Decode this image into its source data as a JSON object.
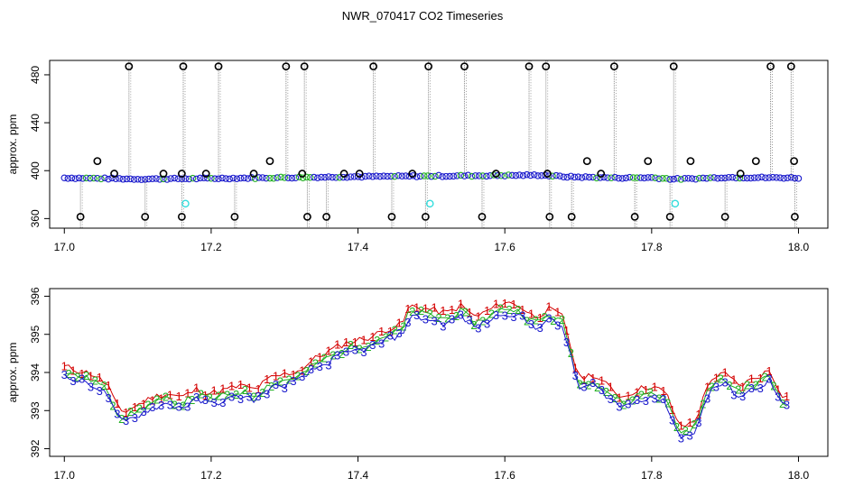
{
  "title": "NWR_070417  CO2 Timeseries",
  "colors": {
    "line1": "#d40000",
    "line2": "#22b022",
    "line3": "#1a1acc",
    "raw": "#888888",
    "outlier": "#000000",
    "flag": "#33dddd"
  },
  "chart_data": [
    {
      "type": "scatter",
      "ylabel": "approx. ppm",
      "xlim": [
        16.98,
        18.04
      ],
      "ylim": [
        352,
        492
      ],
      "xticks": [
        17.0,
        17.2,
        17.4,
        17.6,
        17.8,
        18.0
      ],
      "xtick_labels": [
        "17.0",
        "17.2",
        "17.4",
        "17.6",
        "17.8",
        "18.0"
      ],
      "yticks": [
        360,
        400,
        440,
        480
      ],
      "ytick_labels": [
        "360",
        "400",
        "440",
        "480"
      ],
      "baseline": [
        [
          17.0,
          394
        ],
        [
          17.05,
          393.5
        ],
        [
          17.1,
          393
        ],
        [
          17.2,
          393.5
        ],
        [
          17.3,
          394.2
        ],
        [
          17.4,
          395
        ],
        [
          17.5,
          395.5
        ],
        [
          17.6,
          396
        ],
        [
          17.65,
          396.3
        ],
        [
          17.68,
          395
        ],
        [
          17.75,
          394
        ],
        [
          17.8,
          394.2
        ],
        [
          17.83,
          393
        ],
        [
          17.85,
          393.2
        ],
        [
          17.9,
          394.4
        ],
        [
          18.0,
          394
        ]
      ],
      "outliers_high": [
        17.088,
        17.162,
        17.21,
        17.302,
        17.327,
        17.421,
        17.496,
        17.545,
        17.633,
        17.656,
        17.749,
        17.83,
        17.962,
        17.99
      ],
      "outliers_low": [
        17.022,
        17.11,
        17.16,
        17.232,
        17.331,
        17.357,
        17.446,
        17.492,
        17.569,
        17.661,
        17.691,
        17.777,
        17.825,
        17.9,
        17.995
      ],
      "outliers_mid": [
        17.045,
        17.068,
        17.135,
        17.16,
        17.193,
        17.258,
        17.28,
        17.324,
        17.381,
        17.402,
        17.474,
        17.588,
        17.658,
        17.712,
        17.731,
        17.795,
        17.853,
        17.921,
        17.942,
        17.994
      ],
      "flagged": [
        17.165,
        17.498,
        17.832
      ]
    },
    {
      "type": "scatter",
      "ylabel": "approx. ppm",
      "xlim": [
        16.98,
        18.04
      ],
      "ylim": [
        391.8,
        396.2
      ],
      "xticks": [
        17.0,
        17.2,
        17.4,
        17.6,
        17.8,
        18.0
      ],
      "xtick_labels": [
        "17.0",
        "17.2",
        "17.4",
        "17.6",
        "17.8",
        "18.0"
      ],
      "yticks": [
        392,
        393,
        394,
        395,
        396
      ],
      "ytick_labels": [
        "392",
        "393",
        "394",
        "395",
        "396"
      ],
      "series": [
        {
          "marker": "1",
          "color": "#d40000",
          "offset": 0.15
        },
        {
          "marker": "2",
          "color": "#22b022",
          "offset": 0.0
        },
        {
          "marker": "3",
          "color": "#1a1acc",
          "offset": -0.12
        }
      ],
      "curve": [
        [
          17.0,
          394.0
        ],
        [
          17.02,
          393.9
        ],
        [
          17.04,
          393.8
        ],
        [
          17.06,
          393.5
        ],
        [
          17.07,
          393.0
        ],
        [
          17.08,
          392.8
        ],
        [
          17.1,
          393.0
        ],
        [
          17.12,
          393.2
        ],
        [
          17.14,
          393.3
        ],
        [
          17.16,
          393.2
        ],
        [
          17.18,
          393.4
        ],
        [
          17.2,
          393.3
        ],
        [
          17.22,
          393.4
        ],
        [
          17.24,
          393.5
        ],
        [
          17.26,
          393.4
        ],
        [
          17.28,
          393.7
        ],
        [
          17.3,
          393.8
        ],
        [
          17.32,
          393.9
        ],
        [
          17.34,
          394.2
        ],
        [
          17.36,
          394.4
        ],
        [
          17.38,
          394.6
        ],
        [
          17.4,
          394.7
        ],
        [
          17.42,
          394.8
        ],
        [
          17.44,
          395.0
        ],
        [
          17.46,
          395.1
        ],
        [
          17.47,
          395.6
        ],
        [
          17.5,
          395.5
        ],
        [
          17.52,
          395.4
        ],
        [
          17.54,
          395.6
        ],
        [
          17.56,
          395.3
        ],
        [
          17.58,
          395.5
        ],
        [
          17.6,
          395.7
        ],
        [
          17.62,
          395.6
        ],
        [
          17.64,
          395.3
        ],
        [
          17.66,
          395.5
        ],
        [
          17.68,
          395.3
        ],
        [
          17.69,
          394.5
        ],
        [
          17.7,
          393.7
        ],
        [
          17.72,
          393.8
        ],
        [
          17.74,
          393.5
        ],
        [
          17.76,
          393.2
        ],
        [
          17.78,
          393.4
        ],
        [
          17.8,
          393.5
        ],
        [
          17.82,
          393.3
        ],
        [
          17.83,
          392.8
        ],
        [
          17.84,
          392.4
        ],
        [
          17.86,
          392.6
        ],
        [
          17.88,
          393.7
        ],
        [
          17.9,
          393.8
        ],
        [
          17.92,
          393.5
        ],
        [
          17.94,
          393.7
        ],
        [
          17.96,
          393.9
        ],
        [
          17.98,
          393.2
        ]
      ]
    }
  ]
}
